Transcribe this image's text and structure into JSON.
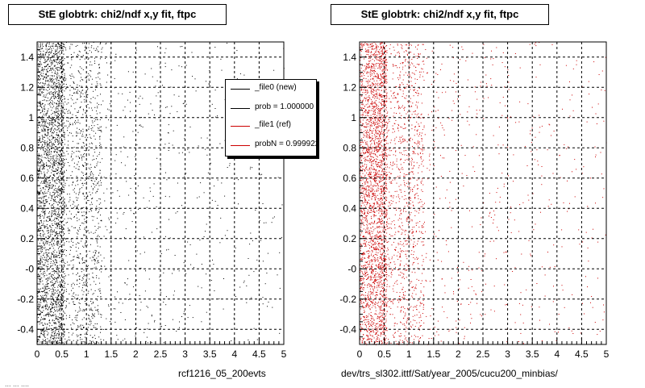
{
  "left_panel": {
    "title": "StE globtrk: chi2/ndf x,y fit, ftpc",
    "footer": "rcf1216_05_200evts"
  },
  "right_panel": {
    "title": "StE globtrk: chi2/ndf x,y fit, ftpc",
    "footer": "dev/trs_sl302.ittf/Sat/year_2005/cucu200_minbias/"
  },
  "corner_text": "... ... ....",
  "legend": {
    "entries": [
      {
        "label": "_file0 (new)",
        "color": "#000000"
      },
      {
        "label": "prob = 1.000000",
        "color": "#000000"
      },
      {
        "label": "_file1 (ref)",
        "color": "#cc0000"
      },
      {
        "label": "probN = 0.999922",
        "color": "#cc0000"
      }
    ]
  },
  "chart_data": [
    {
      "type": "scatter",
      "title": "StE globtrk: chi2/ndf x,y fit, ftpc",
      "xlabel": "",
      "ylabel": "",
      "xlim": [
        0,
        5
      ],
      "ylim": [
        -0.5,
        1.5
      ],
      "x_ticks": [
        "0",
        "0.5",
        "1",
        "1.5",
        "2",
        "2.5",
        "3",
        "3.5",
        "4",
        "4.5",
        "5"
      ],
      "y_ticks": [
        "-0.4",
        "-0.2",
        "-0",
        "0.2",
        "0.4",
        "0.6",
        "0.8",
        "1",
        "1.2",
        "1.4"
      ],
      "grid": true,
      "series": [
        {
          "name": "_file0 (new)",
          "color": "#000000",
          "distribution": "dense near x=0-0.5, sparse to x=5, uniform in y"
        }
      ]
    },
    {
      "type": "scatter",
      "title": "StE globtrk: chi2/ndf x,y fit, ftpc",
      "xlabel": "",
      "ylabel": "",
      "xlim": [
        0,
        5
      ],
      "ylim": [
        -0.5,
        1.5
      ],
      "x_ticks": [
        "0",
        "0.5",
        "1",
        "1.5",
        "2",
        "2.5",
        "3",
        "3.5",
        "4",
        "4.5",
        "5"
      ],
      "y_ticks": [
        "-0.4",
        "-0.2",
        "-0",
        "0.2",
        "0.4",
        "0.6",
        "0.8",
        "1",
        "1.2",
        "1.4"
      ],
      "grid": true,
      "series": [
        {
          "name": "_file1 (ref)",
          "color": "#cc0000",
          "distribution": "dense near x=0-0.5, sparse to x=5, uniform in y"
        }
      ]
    }
  ]
}
